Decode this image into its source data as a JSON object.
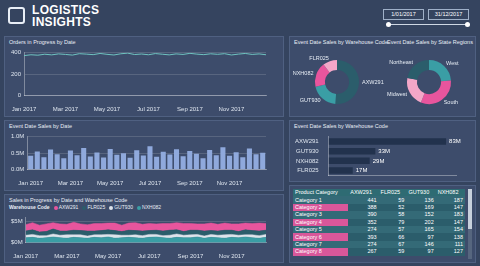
{
  "title": "LOGISTICS INSIGHTS",
  "date_filter": [
    "1/01/2017",
    "31/12/2017"
  ],
  "chart_data": [
    {
      "type": "line",
      "title": "Orders in Progress by Date",
      "categories": [
        "Jan 2017",
        null,
        null,
        null,
        null,
        null,
        "Mar 2017",
        null,
        null,
        null,
        null,
        null,
        "May 2017",
        null,
        null,
        null,
        null,
        null,
        "Jul 2017",
        null,
        null,
        null,
        null,
        null,
        "Sep 2017",
        null,
        null,
        null,
        null,
        null,
        "Nov 2017",
        null,
        null,
        null,
        null,
        null
      ],
      "values": [
        372,
        380,
        376,
        385,
        379,
        388,
        383,
        377,
        390,
        386,
        381,
        392,
        384,
        378,
        389,
        395,
        382,
        387,
        380,
        391,
        385,
        379,
        388,
        383,
        393,
        386,
        381,
        389,
        384,
        390,
        378,
        386,
        392,
        383,
        388,
        380
      ],
      "color": "#6fc3c0",
      "ylim": [
        0,
        400
      ],
      "yticks": [
        0,
        200,
        400
      ],
      "grid": true
    },
    {
      "type": "bar",
      "title": "Event Date Sales by Date",
      "categories": [
        "Jan 2017",
        null,
        null,
        null,
        null,
        null,
        "Mar 2017",
        null,
        null,
        null,
        null,
        null,
        "May 2017",
        null,
        null,
        null,
        null,
        null,
        "Jul 2017",
        null,
        null,
        null,
        null,
        null,
        "Sep 2017",
        null,
        null,
        null,
        null,
        null,
        "Nov 2017",
        null,
        null,
        null,
        null,
        null
      ],
      "values": [
        0.42,
        0.55,
        0.38,
        0.61,
        0.47,
        0.35,
        0.58,
        0.44,
        0.66,
        0.4,
        0.52,
        0.37,
        0.63,
        0.45,
        0.5,
        0.36,
        0.59,
        0.43,
        0.71,
        0.39,
        0.54,
        0.46,
        0.62,
        0.41,
        0.57,
        0.48,
        0.35,
        0.6,
        0.44,
        0.68,
        0.42,
        0.53,
        0.38,
        0.64,
        0.47,
        0.51
      ],
      "color": "#8fa9dc",
      "ylim": [
        0,
        1
      ],
      "yticks": [
        {
          "value": 0,
          "label": "0.0M"
        },
        {
          "value": 0.5,
          "label": "0.5M"
        },
        {
          "value": 1,
          "label": "1.0M"
        }
      ],
      "grid": true
    },
    {
      "type": "area",
      "title": "Sales in Progress by Date and Warehouse Code",
      "legend_title": "Warehouse Code",
      "legend": "top",
      "stacked": true,
      "categories": [
        "Jan 2017",
        null,
        null,
        null,
        null,
        null,
        "Mar 2017",
        null,
        null,
        null,
        null,
        null,
        "May 2017",
        null,
        null,
        null,
        null,
        null,
        "Jul 2017",
        null,
        null,
        null,
        null,
        null,
        "Sep 2017",
        null,
        null,
        null,
        null,
        null,
        "Nov 2017",
        null,
        null,
        null,
        null,
        null
      ],
      "series": [
        {
          "name": "AXW291",
          "color": "#e8559d",
          "values": [
            1.5,
            1.7,
            1.6,
            1.8,
            1.5,
            1.7,
            1.6,
            1.9,
            1.6,
            1.5,
            1.8,
            1.7,
            1.6,
            1.8,
            1.5,
            1.7,
            1.9,
            1.6,
            1.7,
            1.5,
            1.8,
            1.6,
            1.7,
            1.9,
            1.6,
            1.5,
            1.7,
            1.8,
            1.6,
            1.7,
            1.5,
            1.8,
            1.6,
            1.7,
            1.9,
            1.6
          ]
        },
        {
          "name": "FLR025",
          "color": "#2b5d6b",
          "values": [
            1.0,
            1.1,
            0.9,
            1.0,
            1.2,
            1.0,
            0.9,
            1.1,
            1.0,
            1.2,
            0.9,
            1.0,
            1.1,
            1.0,
            0.9,
            1.2,
            1.0,
            1.1,
            0.9,
            1.0,
            1.1,
            1.2,
            1.0,
            0.9,
            1.1,
            1.0,
            1.2,
            0.9,
            1.0,
            1.1,
            1.0,
            0.9,
            1.2,
            1.0,
            1.1,
            1.0
          ]
        },
        {
          "name": "GUT930",
          "color": "#dde3ea",
          "values": [
            0.6,
            0.7,
            0.6,
            0.5,
            0.7,
            0.6,
            0.8,
            0.6,
            0.7,
            0.5,
            0.6,
            0.7,
            0.6,
            0.8,
            0.6,
            0.5,
            0.7,
            0.6,
            0.7,
            0.6,
            0.5,
            0.7,
            0.8,
            0.6,
            0.7,
            0.6,
            0.5,
            0.7,
            0.6,
            0.8,
            0.7,
            0.6,
            0.5,
            0.7,
            0.6,
            0.7
          ]
        },
        {
          "name": "NXH082",
          "color": "#3a9ea5",
          "values": [
            1.2,
            1.3,
            1.1,
            1.2,
            1.4,
            1.2,
            1.1,
            1.3,
            1.2,
            1.1,
            1.3,
            1.2,
            1.4,
            1.1,
            1.2,
            1.3,
            1.2,
            1.1,
            1.3,
            1.4,
            1.2,
            1.1,
            1.3,
            1.2,
            1.2,
            1.4,
            1.1,
            1.3,
            1.2,
            1.1,
            1.3,
            1.2,
            1.4,
            1.2,
            1.1,
            1.3
          ]
        }
      ],
      "ylim": [
        0,
        6
      ],
      "yticks": [
        {
          "value": 0,
          "label": "$0M"
        },
        {
          "value": 5,
          "label": "$5M"
        }
      ],
      "grid": true
    },
    {
      "type": "doughnut",
      "title": "Event Date Sales by Warehouse Code",
      "categories": [
        "AXW291",
        "GUT930",
        "NXH082",
        "FLR025"
      ],
      "values": [
        83,
        33,
        29,
        17
      ],
      "colors": [
        "#2b5d6b",
        "#3a9ea5",
        "#e8559d",
        "#f4a7c8"
      ]
    },
    {
      "type": "doughnut",
      "title": "Event Date Sales by State Regions",
      "categories": [
        "West",
        "South",
        "Midwest",
        "Northeast"
      ],
      "values": [
        24,
        32,
        22,
        22
      ],
      "colors": [
        "#3a9ea5",
        "#e8559d",
        "#f4a7c8",
        "#2b5d6b"
      ]
    },
    {
      "type": "bar",
      "orientation": "horizontal",
      "title": "Event Date Sales by Warehouse Code",
      "categories": [
        "AXW291",
        "GUT930",
        "NXH082",
        "FLR025"
      ],
      "values": [
        83,
        33,
        29,
        17
      ],
      "value_labels": [
        "83M",
        "33M",
        "29M",
        "17M"
      ],
      "data_labels": true,
      "tick_labels": "y",
      "color": "#22324d",
      "xlim": [
        0,
        90
      ]
    }
  ],
  "table": {
    "columns": [
      "Product Category",
      "AXW291",
      "FLR025",
      "GUT930",
      "NXH082"
    ],
    "rows": [
      [
        "Category 1",
        441,
        59,
        136,
        187
      ],
      [
        "Category 2",
        388,
        52,
        169,
        147
      ],
      [
        "Category 3",
        390,
        58,
        152,
        183
      ],
      [
        "Category 4",
        352,
        79,
        202,
        147
      ],
      [
        "Category 5",
        274,
        57,
        165,
        154
      ],
      [
        "Category 6",
        393,
        66,
        97,
        138
      ],
      [
        "Category 7",
        274,
        67,
        146,
        111
      ],
      [
        "Category 8",
        267,
        59,
        97,
        127
      ]
    ]
  }
}
